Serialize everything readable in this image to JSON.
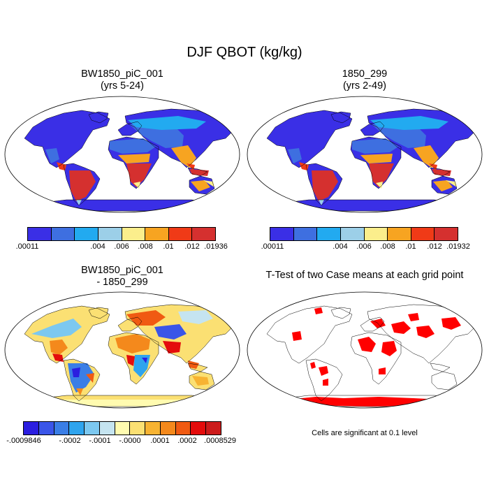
{
  "title": "DJF QBOT (kg/kg)",
  "panels": [
    {
      "title_line1": "BW1850_piC_001",
      "title_line2": "(yrs 5-24)"
    },
    {
      "title_line1": "1850_299",
      "title_line2": "(yrs 2-49)"
    },
    {
      "title_line1": "BW1850_piC_001",
      "title_line2": "- 1850_299"
    },
    {
      "title_line1": "T-Test of two Case means at each grid point",
      "title_line2": ""
    }
  ],
  "colorbars": {
    "abs1": {
      "colors": [
        "#3a2fe6",
        "#3e6fe0",
        "#22aaf0",
        "#9ccfe8",
        "#fbee8c",
        "#f7a421",
        "#f03a17",
        "#d5302f"
      ],
      "labels": [
        ".00011",
        ".004",
        ".006",
        ".008",
        ".01",
        ".012",
        ".01936"
      ]
    },
    "abs2": {
      "colors": [
        "#3a2fe6",
        "#3e6fe0",
        "#22aaf0",
        "#9ccfe8",
        "#fbee8c",
        "#f7a421",
        "#f03a17",
        "#d5302f"
      ],
      "labels": [
        ".00011",
        ".004",
        ".006",
        ".008",
        ".01",
        ".012",
        ".01932"
      ]
    },
    "diff": {
      "colors": [
        "#2b1ee0",
        "#3a55e8",
        "#3a7ee6",
        "#2ea4ee",
        "#7cc8f0",
        "#c5e4f0",
        "#fffbb0",
        "#fbe073",
        "#f7b332",
        "#f4891c",
        "#f05a12",
        "#e40c0c",
        "#cc1b1b"
      ],
      "labels": [
        "-.0009846",
        "-.0002",
        "-.0001",
        "-.0000",
        ".0001",
        ".0002",
        ".0008529"
      ]
    }
  },
  "ttest_color": "#ff0000",
  "significance_note": "Cells are significant at 0.1 level"
}
